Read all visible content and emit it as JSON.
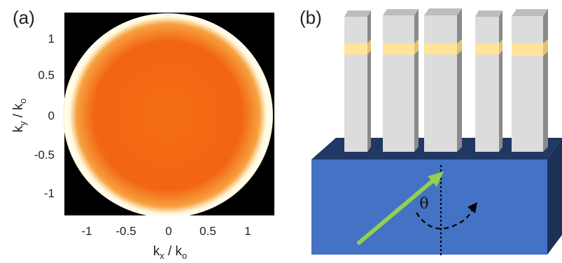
{
  "panel_a": {
    "label": "(a)",
    "colors": {
      "background": "#000000",
      "ring": "#fffdf0",
      "core": "#f46a12",
      "edge": "#e71e10"
    },
    "chart_data": {
      "type": "heatmap",
      "description_source": "k-space intensity map",
      "x_axis": {
        "label_main": "k",
        "label_sub": "x",
        "label_sep": " / ",
        "label_den_main": "k",
        "label_den_sub": "o",
        "ticks": [
          "-1",
          "-0.5",
          "0",
          "0.5",
          "1"
        ],
        "tick_values": [
          -1,
          -0.5,
          0,
          0.5,
          1
        ],
        "range": [
          -1.35,
          1.35
        ]
      },
      "y_axis": {
        "label_main": "k",
        "label_sub": "y",
        "label_sep": " / ",
        "label_den_main": "k",
        "label_den_sub": "o",
        "ticks": [
          "1",
          "0.5",
          "0",
          "-0.5",
          "-1"
        ],
        "tick_values": [
          1,
          0.5,
          0,
          -0.5,
          -1
        ],
        "range": [
          -1.3,
          1.3
        ]
      },
      "ring": {
        "inner_radius": 0.97,
        "outer_radius": 1.25,
        "peak_radius": 1.0
      },
      "grid": false
    }
  },
  "panel_b": {
    "label": "(b)",
    "symbol_theta": "θ",
    "colors": {
      "pillar_face": "#dcdcdc",
      "pillar_side": "#8a8a8a",
      "pillar_top": "#bdbdbd",
      "band": "#ffe49a",
      "block_front": "#4472c4",
      "block_top": "#203864",
      "block_side": "#1f3460",
      "arrow": "#92d050"
    },
    "pillar_count": 5
  }
}
